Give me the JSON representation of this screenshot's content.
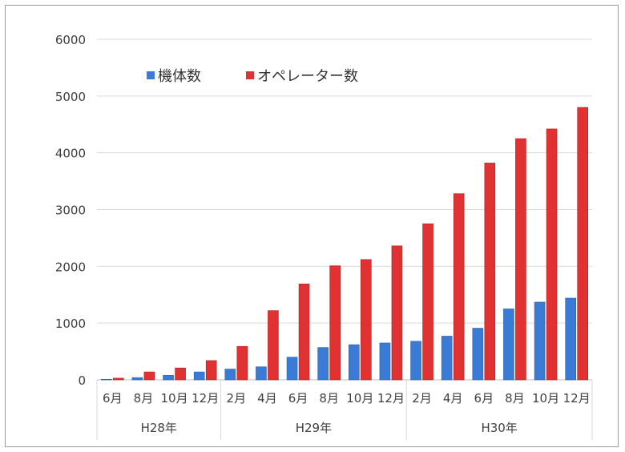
{
  "chart_data": {
    "type": "bar",
    "title": "",
    "xlabel": "",
    "ylabel": "",
    "ylim": [
      0,
      6000
    ],
    "yticks": [
      0,
      1000,
      2000,
      3000,
      4000,
      5000,
      6000
    ],
    "grid": true,
    "legend_position": "top-left",
    "categories": [
      "6月",
      "8月",
      "10月",
      "12月",
      "2月",
      "4月",
      "6月",
      "8月",
      "10月",
      "12月",
      "2月",
      "4月",
      "6月",
      "8月",
      "10月",
      "12月"
    ],
    "groups": [
      {
        "label": "H28年",
        "count": 4
      },
      {
        "label": "H29年",
        "count": 6
      },
      {
        "label": "H30年",
        "count": 6
      }
    ],
    "series": [
      {
        "name": "機体数",
        "color": "#3a7bd5",
        "values": [
          10,
          40,
          80,
          140,
          190,
          230,
          400,
          570,
          620,
          650,
          680,
          770,
          910,
          1250,
          1370,
          1440
        ]
      },
      {
        "name": "オペレーター数",
        "color": "#e03232",
        "values": [
          30,
          140,
          210,
          340,
          590,
          1220,
          1690,
          2010,
          2120,
          2360,
          2750,
          3280,
          3820,
          4250,
          4420,
          4800
        ]
      }
    ]
  }
}
